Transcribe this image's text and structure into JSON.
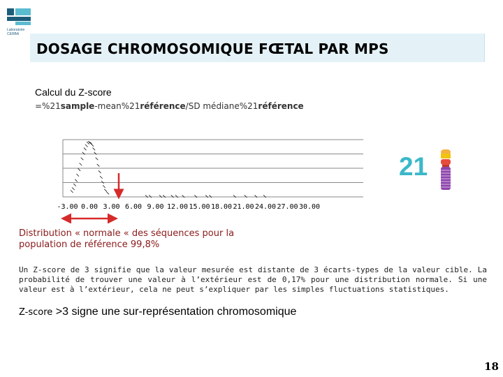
{
  "logo": {
    "line1": "Laboratoire",
    "line2": "CERBA"
  },
  "title": "DOSAGE CHROMOSOMIQUE FŒTAL PAR MPS",
  "subtitle": "Calcul du Z-score",
  "formula": {
    "p1": "=%21",
    "p2": "sample",
    "p3": "-mean%21",
    "p4": "référence",
    "p5": "/SD médiane%21",
    "p6": "référence"
  },
  "badge": {
    "number": "21"
  },
  "distribution_text": "Distribution « normale « des séquences pour la population de référence 99,8%",
  "explanation": "Un Z-score de 3 signifie que la valeur mesurée est distante de 3 écarts-types de la valeur cible. La probabilité de trouver une valeur à l’extérieur est de 0,17% pour une distribution normale. Si une valeur est à l’extérieur, cela ne peut s’expliquer par les simples fluctuations statistiques.",
  "zscore_line": {
    "label": "Z-score",
    "rest": " >3 signe une sur-représentation chromosomique"
  },
  "page_number": "18",
  "colors": {
    "accent_teal": "#3bb8c9",
    "arrow_red": "#d62a2a",
    "text_dark_red": "#8b1a1a"
  },
  "chart_data": {
    "type": "scatter",
    "title": "",
    "xlabel": "",
    "ylabel": "",
    "x_ticks": [
      "-3.00",
      "0.00",
      "3.00",
      "6.00",
      "9.00",
      "12.00",
      "15.00",
      "18.00",
      "21.00",
      "24.00",
      "27.00",
      "30.00"
    ],
    "xlim": [
      -3,
      30
    ],
    "ylim": [
      0,
      1
    ],
    "grid": true,
    "series": [
      {
        "x": [
          -2.4,
          -2.2,
          -2.0,
          -1.8,
          -1.6,
          -1.4,
          -1.2,
          -1.0,
          -0.8,
          -0.6,
          -0.4,
          -0.2,
          0.0,
          0.2,
          0.4,
          0.6,
          0.8,
          1.0,
          1.2,
          1.4,
          1.6,
          1.8,
          2.0,
          2.2,
          2.5,
          7.8,
          8.3,
          9.7,
          10.2,
          11.3,
          11.9,
          12.8,
          14.5,
          16.0,
          16.5,
          19.8,
          21.3,
          22.7,
          23.9
        ],
        "y": [
          0.1,
          0.15,
          0.22,
          0.3,
          0.4,
          0.5,
          0.6,
          0.7,
          0.8,
          0.88,
          0.94,
          0.99,
          1.0,
          0.99,
          0.95,
          0.88,
          0.8,
          0.7,
          0.58,
          0.46,
          0.36,
          0.27,
          0.19,
          0.12,
          0.07,
          0.01,
          0.01,
          0.01,
          0.01,
          0.01,
          0.01,
          0.01,
          0.01,
          0.01,
          0.01,
          0.01,
          0.01,
          0.01,
          0.01
        ]
      }
    ],
    "annotations": [
      {
        "type": "double-arrow",
        "x": [
          -3.0,
          3.0
        ],
        "color": "red"
      },
      {
        "type": "down-arrow",
        "x": 4.0,
        "color": "red"
      }
    ]
  }
}
